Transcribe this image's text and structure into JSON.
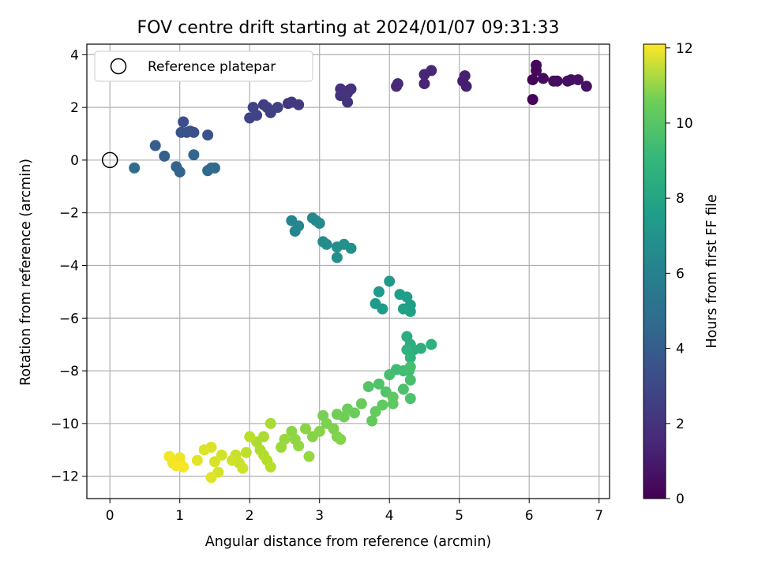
{
  "chart_data": {
    "type": "scatter",
    "title": "FOV centre drift starting at 2024/01/07 09:31:33",
    "xlabel": "Angular distance from reference (arcmin)",
    "ylabel": "Rotation from reference (arcmin)",
    "xlim": [
      -0.33,
      7.15
    ],
    "ylim": [
      -12.85,
      4.4
    ],
    "xticks": [
      0,
      1,
      2,
      3,
      4,
      5,
      6,
      7
    ],
    "yticks": [
      4,
      2,
      0,
      -2,
      -4,
      -6,
      -8,
      -10,
      -12
    ],
    "grid": true,
    "colormap": "viridis",
    "colorbar": {
      "label": "Hours from first FF file",
      "range": [
        0,
        12.1
      ],
      "ticks": [
        0,
        2,
        4,
        6,
        8,
        10,
        12
      ]
    },
    "legend": {
      "placement": "top-left",
      "entries": [
        "Reference platepar"
      ]
    },
    "reference_point": {
      "x": 0,
      "y": 0
    },
    "points": [
      [
        6.05,
        2.3,
        0.1
      ],
      [
        6.05,
        3.05,
        0.15
      ],
      [
        6.1,
        3.4,
        0.2
      ],
      [
        6.1,
        3.6,
        0.25
      ],
      [
        6.2,
        3.1,
        0.3
      ],
      [
        6.35,
        3.0,
        0.35
      ],
      [
        6.4,
        3.0,
        0.4
      ],
      [
        6.55,
        3.0,
        0.45
      ],
      [
        6.6,
        3.05,
        0.5
      ],
      [
        6.7,
        3.05,
        0.55
      ],
      [
        6.82,
        2.8,
        0.6
      ],
      [
        5.05,
        3.0,
        1.0
      ],
      [
        5.1,
        2.8,
        1.05
      ],
      [
        5.08,
        3.2,
        1.1
      ],
      [
        4.5,
        2.9,
        1.2
      ],
      [
        4.5,
        3.25,
        1.25
      ],
      [
        4.6,
        3.4,
        1.3
      ],
      [
        4.1,
        2.8,
        1.4
      ],
      [
        4.12,
        2.9,
        1.45
      ],
      [
        3.3,
        2.7,
        1.7
      ],
      [
        3.35,
        2.5,
        1.72
      ],
      [
        3.4,
        2.55,
        1.75
      ],
      [
        3.4,
        2.2,
        1.78
      ],
      [
        3.45,
        2.7,
        1.8
      ],
      [
        3.3,
        2.45,
        1.82
      ],
      [
        3.42,
        2.65,
        1.85
      ],
      [
        2.55,
        2.15,
        2.0
      ],
      [
        2.6,
        2.2,
        2.05
      ],
      [
        2.7,
        2.1,
        2.1
      ],
      [
        2.2,
        2.1,
        2.2
      ],
      [
        2.25,
        2.0,
        2.25
      ],
      [
        2.3,
        1.8,
        2.3
      ],
      [
        2.4,
        2.0,
        2.35
      ],
      [
        2.05,
        2.0,
        2.4
      ],
      [
        2.0,
        1.6,
        2.45
      ],
      [
        2.1,
        1.7,
        2.5
      ],
      [
        1.05,
        1.45,
        2.9
      ],
      [
        1.1,
        1.05,
        2.95
      ],
      [
        1.15,
        1.1,
        3.0
      ],
      [
        1.2,
        1.05,
        3.05
      ],
      [
        1.02,
        1.05,
        3.1
      ],
      [
        1.4,
        0.95,
        3.15
      ],
      [
        0.65,
        0.55,
        3.6
      ],
      [
        0.78,
        0.15,
        3.7
      ],
      [
        0.95,
        -0.25,
        3.8
      ],
      [
        1.0,
        -0.45,
        3.9
      ],
      [
        1.2,
        0.2,
        4.0
      ],
      [
        1.4,
        -0.4,
        4.1
      ],
      [
        1.45,
        -0.3,
        4.15
      ],
      [
        1.5,
        -0.3,
        4.2
      ],
      [
        0.35,
        -0.3,
        4.3
      ],
      [
        2.6,
        -2.3,
        5.5
      ],
      [
        2.65,
        -2.7,
        5.55
      ],
      [
        2.7,
        -2.5,
        5.6
      ],
      [
        2.9,
        -2.2,
        5.65
      ],
      [
        2.95,
        -2.3,
        5.7
      ],
      [
        3.0,
        -2.4,
        5.75
      ],
      [
        3.05,
        -3.1,
        5.85
      ],
      [
        3.1,
        -3.2,
        5.9
      ],
      [
        3.25,
        -3.7,
        5.95
      ],
      [
        3.25,
        -3.3,
        6.0
      ],
      [
        3.35,
        -3.2,
        6.05
      ],
      [
        3.45,
        -3.35,
        6.1
      ],
      [
        4.0,
        -4.6,
        6.5
      ],
      [
        3.85,
        -5.0,
        6.55
      ],
      [
        3.8,
        -5.45,
        6.6
      ],
      [
        3.9,
        -5.65,
        6.65
      ],
      [
        4.15,
        -5.1,
        6.7
      ],
      [
        4.25,
        -5.2,
        6.75
      ],
      [
        4.3,
        -5.5,
        6.8
      ],
      [
        4.3,
        -5.75,
        6.85
      ],
      [
        4.2,
        -5.65,
        6.9
      ],
      [
        4.25,
        -6.7,
        7.5
      ],
      [
        4.3,
        -7.0,
        7.55
      ],
      [
        4.35,
        -7.2,
        7.6
      ],
      [
        4.45,
        -7.15,
        7.65
      ],
      [
        4.6,
        -7.0,
        7.7
      ],
      [
        4.25,
        -7.2,
        7.75
      ],
      [
        4.3,
        -7.5,
        7.8
      ],
      [
        4.1,
        -7.95,
        8.3
      ],
      [
        4.2,
        -8.0,
        8.35
      ],
      [
        4.28,
        -8.0,
        8.4
      ],
      [
        4.3,
        -7.85,
        8.45
      ],
      [
        4.0,
        -8.15,
        8.5
      ],
      [
        4.3,
        -8.35,
        8.55
      ],
      [
        4.2,
        -8.7,
        8.6
      ],
      [
        4.3,
        -9.05,
        8.65
      ],
      [
        3.85,
        -8.5,
        8.7
      ],
      [
        3.95,
        -8.8,
        8.75
      ],
      [
        3.7,
        -8.6,
        8.8
      ],
      [
        4.05,
        -9.0,
        9.0
      ],
      [
        4.05,
        -9.25,
        9.05
      ],
      [
        3.9,
        -9.3,
        9.1
      ],
      [
        3.8,
        -9.55,
        9.15
      ],
      [
        3.75,
        -9.9,
        9.2
      ],
      [
        3.6,
        -9.25,
        9.25
      ],
      [
        3.5,
        -9.6,
        9.3
      ],
      [
        3.4,
        -9.45,
        9.35
      ],
      [
        3.35,
        -9.75,
        9.4
      ],
      [
        3.25,
        -9.65,
        9.45
      ],
      [
        3.05,
        -9.7,
        9.6
      ],
      [
        3.1,
        -10.0,
        9.65
      ],
      [
        3.2,
        -10.2,
        9.7
      ],
      [
        3.25,
        -10.5,
        9.75
      ],
      [
        3.3,
        -10.6,
        9.8
      ],
      [
        3.0,
        -10.3,
        9.85
      ],
      [
        2.9,
        -10.5,
        9.9
      ],
      [
        2.8,
        -10.2,
        9.95
      ],
      [
        2.6,
        -10.3,
        10.0
      ],
      [
        2.65,
        -10.6,
        10.05
      ],
      [
        2.7,
        -10.85,
        10.1
      ],
      [
        2.85,
        -11.25,
        10.15
      ],
      [
        2.5,
        -10.6,
        10.2
      ],
      [
        2.45,
        -10.9,
        10.25
      ],
      [
        2.3,
        -10.0,
        10.5
      ],
      [
        2.2,
        -10.5,
        10.55
      ],
      [
        2.1,
        -10.7,
        10.6
      ],
      [
        2.15,
        -11.0,
        10.65
      ],
      [
        2.2,
        -11.2,
        10.7
      ],
      [
        2.25,
        -11.4,
        10.75
      ],
      [
        2.3,
        -11.65,
        10.8
      ],
      [
        2.0,
        -10.5,
        10.85
      ],
      [
        1.95,
        -11.1,
        10.9
      ],
      [
        1.8,
        -11.2,
        11.1
      ],
      [
        1.85,
        -11.5,
        11.15
      ],
      [
        1.9,
        -11.7,
        11.2
      ],
      [
        1.75,
        -11.4,
        11.25
      ],
      [
        1.6,
        -11.2,
        11.3
      ],
      [
        1.55,
        -11.85,
        11.35
      ],
      [
        1.5,
        -11.45,
        11.4
      ],
      [
        1.45,
        -10.9,
        11.45
      ],
      [
        1.35,
        -11.0,
        11.5
      ],
      [
        1.45,
        -12.05,
        11.55
      ],
      [
        1.25,
        -11.4,
        11.6
      ],
      [
        1.0,
        -11.5,
        11.75
      ],
      [
        1.0,
        -11.3,
        11.8
      ],
      [
        0.9,
        -11.5,
        11.85
      ],
      [
        0.85,
        -11.25,
        11.9
      ],
      [
        1.05,
        -11.65,
        11.95
      ],
      [
        0.95,
        -11.6,
        12.0
      ]
    ]
  }
}
